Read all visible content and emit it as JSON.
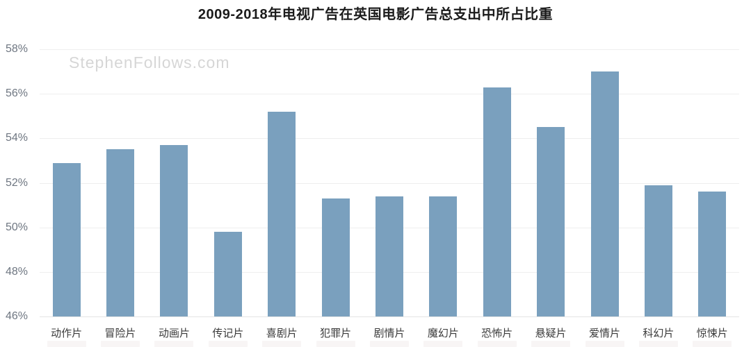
{
  "watermark": "StephenFollows.com",
  "chart_data": {
    "type": "bar",
    "title": "2009-2018年电视广告在英国电影广告总支出中所占比重",
    "categories": [
      "动作片",
      "冒险片",
      "动画片",
      "传记片",
      "喜剧片",
      "犯罪片",
      "剧情片",
      "魔幻片",
      "恐怖片",
      "悬疑片",
      "爱情片",
      "科幻片",
      "惊悚片"
    ],
    "values": [
      52.9,
      53.5,
      53.7,
      49.8,
      55.2,
      51.3,
      51.4,
      51.4,
      56.3,
      54.5,
      57.0,
      51.9,
      51.6
    ],
    "value_unit": "%",
    "xlabel": "",
    "ylabel": "",
    "ylim": [
      46,
      58
    ],
    "ytick_step": 2,
    "ytick_labels": [
      "46%",
      "48%",
      "50%",
      "52%",
      "54%",
      "56%",
      "58%"
    ],
    "grid": true,
    "legend_position": "none",
    "colors": {
      "bar": "#7AA0BE",
      "gridline": "#eeeeee",
      "axis_line": "#e4e4e4",
      "ytick_text": "#6e7681",
      "xtick_text": "#3a3a3a",
      "title_text": "#1b1b1b",
      "watermark_text": "#d6d6d6"
    }
  }
}
